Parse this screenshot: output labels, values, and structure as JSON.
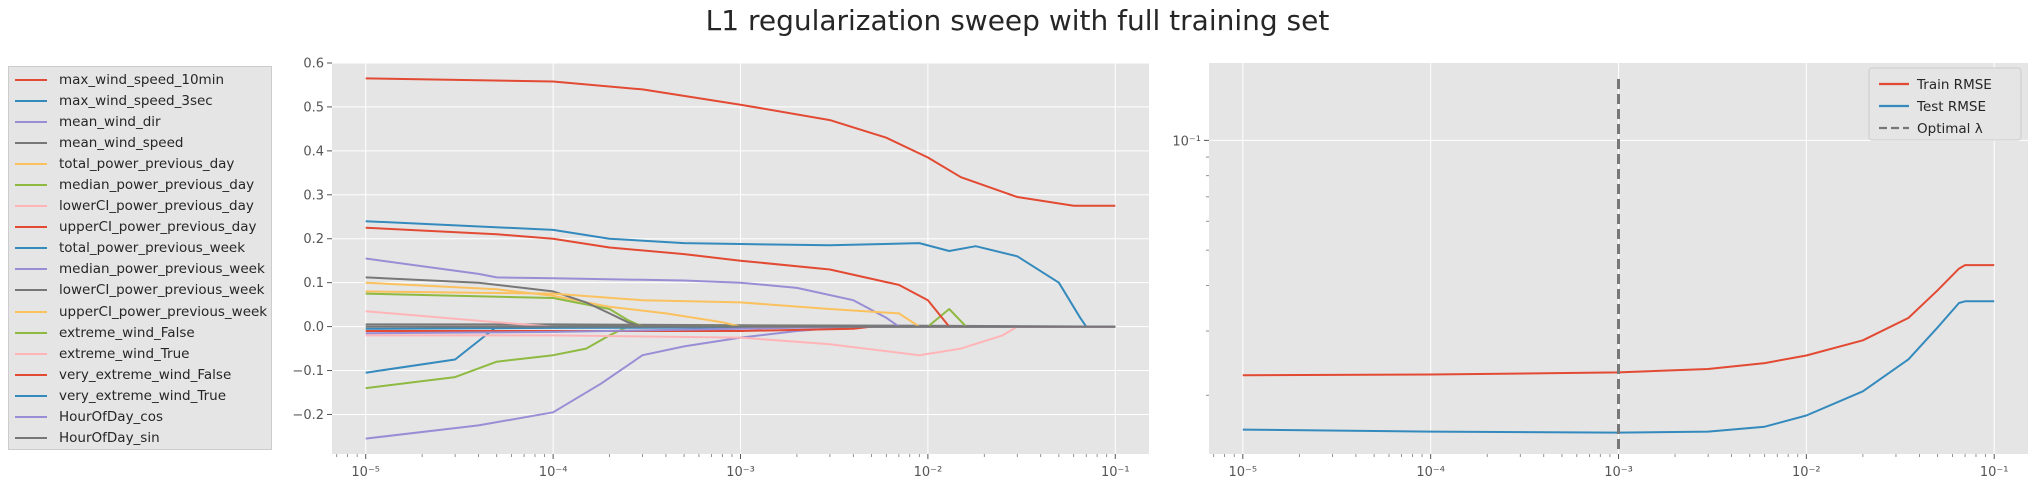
{
  "title": "L1 regularization sweep with full training set",
  "colors": {
    "cycle": [
      "#E24A33",
      "#348ABD",
      "#988ED5",
      "#777777",
      "#FBC15E",
      "#8EBA42",
      "#FFB5B8"
    ],
    "axes_bg": "#E5E5E5",
    "grid": "#FFFFFF",
    "vline": "#777777"
  },
  "chart_data": [
    {
      "type": "line",
      "xscale": "log",
      "xlim": [
        1e-05,
        0.1
      ],
      "ylim": [
        -0.29,
        0.6
      ],
      "xticks": [
        1e-05,
        0.0001,
        0.001,
        0.01,
        0.1
      ],
      "xtick_labels": [
        "10⁻⁵",
        "10⁻⁴",
        "10⁻³",
        "10⁻²",
        "10⁻¹"
      ],
      "yticks": [
        -0.2,
        -0.1,
        0.0,
        0.1,
        0.2,
        0.3,
        0.4,
        0.5,
        0.6
      ],
      "ytick_labels": [
        "−0.2",
        "−0.1",
        "0.0",
        "0.1",
        "0.2",
        "0.3",
        "0.4",
        "0.5",
        "0.6"
      ],
      "grid": true,
      "legend_position": "outside-left",
      "series": [
        {
          "name": "max_wind_speed_10min",
          "color_index": 0,
          "points": [
            [
              1e-05,
              0.565
            ],
            [
              0.0001,
              0.558
            ],
            [
              0.0003,
              0.54
            ],
            [
              0.001,
              0.505
            ],
            [
              0.003,
              0.47
            ],
            [
              0.006,
              0.43
            ],
            [
              0.01,
              0.385
            ],
            [
              0.015,
              0.34
            ],
            [
              0.03,
              0.295
            ],
            [
              0.06,
              0.275
            ],
            [
              0.1,
              0.275
            ]
          ]
        },
        {
          "name": "max_wind_speed_3sec",
          "color_index": 1,
          "points": [
            [
              1e-05,
              0.24
            ],
            [
              0.0001,
              0.22
            ],
            [
              0.0002,
              0.2
            ],
            [
              0.0005,
              0.19
            ],
            [
              0.001,
              0.188
            ],
            [
              0.003,
              0.185
            ],
            [
              0.009,
              0.19
            ],
            [
              0.013,
              0.172
            ],
            [
              0.018,
              0.183
            ],
            [
              0.03,
              0.16
            ],
            [
              0.05,
              0.1
            ],
            [
              0.065,
              0.02
            ],
            [
              0.07,
              0.0
            ],
            [
              0.1,
              0.0
            ]
          ]
        },
        {
          "name": "mean_wind_dir",
          "color_index": 2,
          "points": [
            [
              1e-05,
              -0.255
            ],
            [
              4e-05,
              -0.225
            ],
            [
              0.0001,
              -0.195
            ],
            [
              0.00018,
              -0.13
            ],
            [
              0.0003,
              -0.065
            ],
            [
              0.0005,
              -0.045
            ],
            [
              0.001,
              -0.025
            ],
            [
              0.002,
              -0.01
            ],
            [
              0.004,
              0.0
            ],
            [
              0.1,
              0.0
            ]
          ]
        },
        {
          "name": "mean_wind_speed",
          "color_index": 3,
          "points": [
            [
              1e-05,
              0.005
            ],
            [
              0.0001,
              0.005
            ],
            [
              0.001,
              0.003
            ],
            [
              0.01,
              0.002
            ],
            [
              0.1,
              0.0
            ]
          ]
        },
        {
          "name": "total_power_previous_day",
          "color_index": 4,
          "points": [
            [
              1e-05,
              0.1
            ],
            [
              5e-05,
              0.085
            ],
            [
              0.0001,
              0.07
            ],
            [
              0.0002,
              0.045
            ],
            [
              0.0004,
              0.03
            ],
            [
              0.0008,
              0.01
            ],
            [
              0.001,
              0.0
            ],
            [
              0.1,
              0.0
            ]
          ]
        },
        {
          "name": "median_power_previous_day",
          "color_index": 5,
          "points": [
            [
              1e-05,
              0.075
            ],
            [
              0.0001,
              0.065
            ],
            [
              0.0002,
              0.04
            ],
            [
              0.00025,
              0.015
            ],
            [
              0.0003,
              0.0
            ],
            [
              0.01,
              0.0
            ],
            [
              0.013,
              0.04
            ],
            [
              0.016,
              0.0
            ],
            [
              0.1,
              0.0
            ]
          ]
        },
        {
          "name": "lowerCI_power_previous_day",
          "color_index": 6,
          "points": [
            [
              1e-05,
              0.035
            ],
            [
              5e-05,
              0.01
            ],
            [
              0.0001,
              0.0
            ],
            [
              0.1,
              0.0
            ]
          ]
        },
        {
          "name": "upperCI_power_previous_day",
          "color_index": 0,
          "points": [
            [
              1e-05,
              0.225
            ],
            [
              5e-05,
              0.21
            ],
            [
              0.0001,
              0.2
            ],
            [
              0.0002,
              0.18
            ],
            [
              0.0005,
              0.165
            ],
            [
              0.001,
              0.15
            ],
            [
              0.003,
              0.13
            ],
            [
              0.007,
              0.095
            ],
            [
              0.01,
              0.06
            ],
            [
              0.013,
              0.0
            ],
            [
              0.1,
              0.0
            ]
          ]
        },
        {
          "name": "total_power_previous_week",
          "color_index": 1,
          "points": [
            [
              1e-05,
              -0.105
            ],
            [
              3e-05,
              -0.075
            ],
            [
              5e-05,
              0.0
            ],
            [
              0.1,
              0.0
            ]
          ]
        },
        {
          "name": "median_power_previous_week",
          "color_index": 2,
          "points": [
            [
              1e-05,
              0.155
            ],
            [
              4e-05,
              0.12
            ],
            [
              5e-05,
              0.112
            ],
            [
              0.0001,
              0.11
            ],
            [
              0.0005,
              0.105
            ],
            [
              0.001,
              0.1
            ],
            [
              0.002,
              0.088
            ],
            [
              0.004,
              0.06
            ],
            [
              0.006,
              0.02
            ],
            [
              0.007,
              0.0
            ],
            [
              0.1,
              0.0
            ]
          ]
        },
        {
          "name": "lowerCI_power_previous_week",
          "color_index": 3,
          "points": [
            [
              1e-05,
              0.112
            ],
            [
              4e-05,
              0.1
            ],
            [
              0.0001,
              0.08
            ],
            [
              0.00015,
              0.055
            ],
            [
              0.0002,
              0.03
            ],
            [
              0.00025,
              0.01
            ],
            [
              0.0003,
              0.0
            ],
            [
              0.1,
              0.0
            ]
          ]
        },
        {
          "name": "upperCI_power_previous_week",
          "color_index": 4,
          "points": [
            [
              1e-05,
              0.08
            ],
            [
              0.0001,
              0.075
            ],
            [
              0.0003,
              0.06
            ],
            [
              0.001,
              0.055
            ],
            [
              0.003,
              0.04
            ],
            [
              0.007,
              0.03
            ],
            [
              0.009,
              0.0
            ],
            [
              0.1,
              0.0
            ]
          ]
        },
        {
          "name": "extreme_wind_False",
          "color_index": 5,
          "points": [
            [
              1e-05,
              -0.14
            ],
            [
              3e-05,
              -0.115
            ],
            [
              5e-05,
              -0.08
            ],
            [
              0.0001,
              -0.065
            ],
            [
              0.00015,
              -0.05
            ],
            [
              0.0002,
              -0.02
            ],
            [
              0.00025,
              0.0
            ],
            [
              0.1,
              0.0
            ]
          ]
        },
        {
          "name": "extreme_wind_True",
          "color_index": 6,
          "points": [
            [
              1e-05,
              -0.02
            ],
            [
              0.0001,
              -0.02
            ],
            [
              0.001,
              -0.025
            ],
            [
              0.003,
              -0.04
            ],
            [
              0.009,
              -0.065
            ],
            [
              0.015,
              -0.05
            ],
            [
              0.025,
              -0.02
            ],
            [
              0.03,
              0.0
            ],
            [
              0.1,
              0.0
            ]
          ]
        },
        {
          "name": "very_extreme_wind_False",
          "color_index": 0,
          "points": [
            [
              1e-05,
              -0.01
            ],
            [
              0.001,
              -0.01
            ],
            [
              0.004,
              -0.005
            ],
            [
              0.005,
              0.0
            ],
            [
              0.1,
              0.0
            ]
          ]
        },
        {
          "name": "very_extreme_wind_True",
          "color_index": 1,
          "points": [
            [
              1e-05,
              -0.005
            ],
            [
              0.0001,
              -0.003
            ],
            [
              0.001,
              -0.002
            ],
            [
              0.003,
              0.0
            ],
            [
              0.1,
              0.0
            ]
          ]
        },
        {
          "name": "HourOfDay_cos",
          "color_index": 2,
          "points": [
            [
              1e-05,
              -0.015
            ],
            [
              0.0001,
              -0.012
            ],
            [
              0.001,
              -0.005
            ],
            [
              0.004,
              0.0
            ],
            [
              0.1,
              0.0
            ]
          ]
        },
        {
          "name": "HourOfDay_sin",
          "color_index": 3,
          "points": [
            [
              1e-05,
              0.0
            ],
            [
              0.1,
              0.0
            ]
          ]
        }
      ]
    },
    {
      "type": "line",
      "xscale": "log",
      "yscale": "log",
      "xlim": [
        1e-05,
        0.1
      ],
      "ylim": [
        0.0138,
        0.163
      ],
      "xticks": [
        1e-05,
        0.0001,
        0.001,
        0.01,
        0.1
      ],
      "xtick_labels": [
        "10⁻⁵",
        "10⁻⁴",
        "10⁻³",
        "10⁻²",
        "10⁻¹"
      ],
      "ytick_major": [
        0.1
      ],
      "ytick_major_labels": [
        "10⁻¹"
      ],
      "grid": true,
      "legend_position": "upper right",
      "optimal_lambda": 0.001,
      "series": [
        {
          "name": "Train RMSE",
          "color_index": 0,
          "points": [
            [
              1e-05,
              0.0227
            ],
            [
              0.0001,
              0.0228
            ],
            [
              0.001,
              0.0231
            ],
            [
              0.003,
              0.0236
            ],
            [
              0.006,
              0.0245
            ],
            [
              0.01,
              0.0257
            ],
            [
              0.02,
              0.0283
            ],
            [
              0.035,
              0.0326
            ],
            [
              0.05,
              0.0388
            ],
            [
              0.065,
              0.0445
            ],
            [
              0.07,
              0.0455
            ],
            [
              0.1,
              0.0455
            ]
          ]
        },
        {
          "name": "Test RMSE",
          "color_index": 1,
          "points": [
            [
              1e-05,
              0.0161
            ],
            [
              0.0001,
              0.0159
            ],
            [
              0.001,
              0.0158
            ],
            [
              0.003,
              0.0159
            ],
            [
              0.006,
              0.0164
            ],
            [
              0.01,
              0.0176
            ],
            [
              0.02,
              0.0205
            ],
            [
              0.035,
              0.0251
            ],
            [
              0.05,
              0.0307
            ],
            [
              0.065,
              0.0358
            ],
            [
              0.07,
              0.0362
            ],
            [
              0.1,
              0.0362
            ]
          ]
        }
      ],
      "legend_entries": [
        "Train RMSE",
        "Test RMSE",
        "Optimal λ"
      ]
    }
  ]
}
